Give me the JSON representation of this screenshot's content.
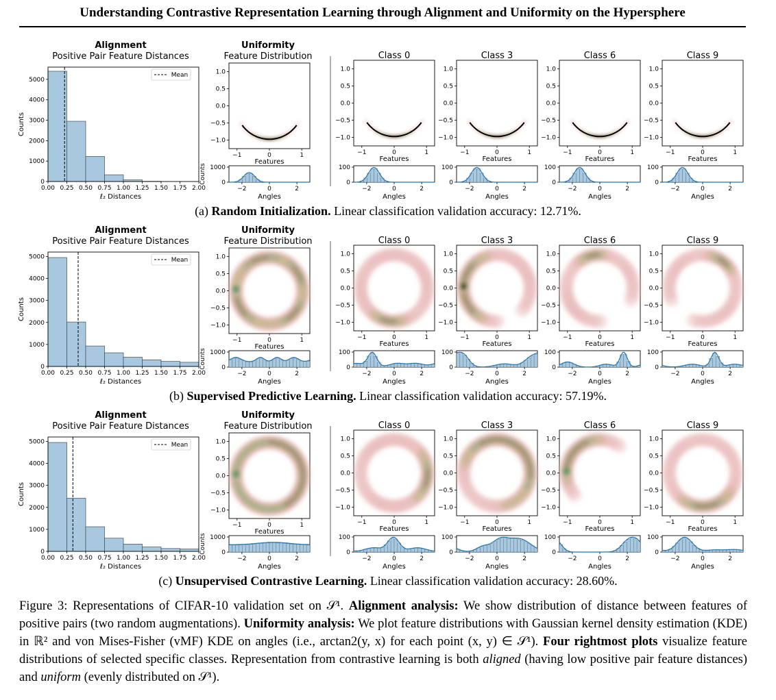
{
  "paper": {
    "header": "Understanding Contrastive Representation Learning through Alignment and Uniformity on the Hypersphere"
  },
  "panel_text": {
    "alignment_title": "Alignment",
    "alignment_subtitle": "Positive Pair Feature Distances",
    "uniformity_title": "Uniformity",
    "uniformity_subtitle": "Feature Distribution",
    "counts_label": "Counts",
    "distances_label": "ℓ₂ Distances",
    "features_label": "Features",
    "angles_label": "Angles",
    "mean_label": "Mean"
  },
  "rows": [
    {
      "caption_prefix": "(a)",
      "caption_bold": "Random Initialization.",
      "caption_rest": "Linear classification validation accuracy: 12.71%."
    },
    {
      "caption_prefix": "(b)",
      "caption_bold": "Supervised Predictive Learning.",
      "caption_rest": "Linear classification validation accuracy: 57.19%."
    },
    {
      "caption_prefix": "(c)",
      "caption_bold": "Unsupervised Contrastive Learning.",
      "caption_rest": "Linear classification validation accuracy: 28.60%."
    }
  ],
  "chart_data": [
    {
      "type": "bar",
      "panel": "(a) Alignment",
      "title": "Alignment",
      "subtitle": "Positive Pair Feature Distances",
      "xlabel": "ℓ₂ Distances",
      "ylabel": "Counts",
      "bin_edges": [
        0,
        0.25,
        0.5,
        0.75,
        1.0,
        1.25,
        1.5,
        1.75,
        2.0
      ],
      "values": [
        5400,
        2950,
        1230,
        330,
        80,
        10,
        0,
        0
      ],
      "mean": 0.22,
      "xlim": [
        0,
        2
      ],
      "ylim": [
        0,
        5600
      ],
      "yticks": [
        0,
        1000,
        2000,
        3000,
        4000,
        5000
      ],
      "xticks": [
        "0.00",
        "0.25",
        "0.50",
        "0.75",
        "1.00",
        "1.25",
        "1.50",
        "1.75",
        "2.00"
      ],
      "legend": "Mean"
    },
    {
      "type": "bar",
      "panel": "(b) Alignment",
      "title": "Alignment",
      "subtitle": "Positive Pair Feature Distances",
      "xlabel": "ℓ₂ Distances",
      "ylabel": "Counts",
      "bin_edges": [
        0,
        0.25,
        0.5,
        0.75,
        1.0,
        1.25,
        1.5,
        1.75,
        2.0
      ],
      "values": [
        4950,
        2020,
        930,
        620,
        420,
        300,
        230,
        190
      ],
      "extra_values": [
        180,
        380
      ],
      "mean": 0.4,
      "xlim": [
        0,
        2
      ],
      "ylim": [
        0,
        5200
      ],
      "yticks": [
        0,
        1000,
        2000,
        3000,
        4000,
        5000
      ],
      "xticks": [
        "0.00",
        "0.25",
        "0.50",
        "0.75",
        "1.00",
        "1.25",
        "1.50",
        "1.75",
        "2.00"
      ],
      "legend": "Mean"
    },
    {
      "type": "bar",
      "panel": "(c) Alignment",
      "title": "Alignment",
      "subtitle": "Positive Pair Feature Distances",
      "xlabel": "ℓ₂ Distances",
      "ylabel": "Counts",
      "bin_edges": [
        0,
        0.25,
        0.5,
        0.75,
        1.0,
        1.25,
        1.5,
        1.75,
        2.0
      ],
      "values": [
        4950,
        2420,
        1120,
        600,
        330,
        200,
        130,
        110
      ],
      "extra_values": [
        120,
        140
      ],
      "mean": 0.33,
      "xlim": [
        0,
        2
      ],
      "ylim": [
        0,
        5200
      ],
      "yticks": [
        0,
        1000,
        2000,
        3000,
        4000,
        5000
      ],
      "xticks": [
        "0.00",
        "0.25",
        "0.50",
        "0.75",
        "1.00",
        "1.25",
        "1.50",
        "1.75",
        "2.00"
      ],
      "legend": "Mean"
    },
    {
      "type": "heatmap",
      "panel": "KDE on S1",
      "columns": [
        "Uniformity",
        "Class 0",
        "Class 3",
        "Class 6",
        "Class 9"
      ],
      "xticks": [
        "−1",
        "0",
        "1"
      ],
      "yticks": [
        "1.0",
        "0.5",
        "0.0",
        "−0.5",
        "−1.0"
      ],
      "xlabel": "Features",
      "angle_xlabel": "Angles",
      "angle_xticks": [
        "−2",
        "0",
        "2"
      ],
      "angle_yticks_uniformity": [
        "0",
        "1000"
      ],
      "angle_yticks_class": [
        "0",
        "100"
      ]
    }
  ],
  "caption": {
    "figure_label": "Figure 3:",
    "text1": "Representations of CIFAR-10 validation set on 𝒮¹.",
    "bold1": "Alignment analysis:",
    "text2": "We show distribution of distance between features of positive pairs (two random augmentations).",
    "bold2": "Uniformity analysis:",
    "text3": "We plot feature distributions with Gaussian kernel density estimation (KDE) in ℝ² and von Mises-Fisher (vMF) KDE on angles (i.e., arctan2(y, x) for each point (x, y) ∈ 𝒮¹).",
    "bold3": "Four rightmost plots",
    "text4": "visualize feature distributions of selected specific classes. Representation from contrastive learning is both",
    "italic1": "aligned",
    "text5": "(having low positive pair feature distances) and",
    "italic2": "uniform",
    "text6": "(evenly distributed on 𝒮¹)."
  },
  "colors": {
    "bar_fill": "#a8c8e0",
    "bar_edge": "#3d4e5e",
    "kde_line": "#1f77b4",
    "ring_outer": "#e8b8b8",
    "ring_mid": "#a6b86a",
    "ring_core": "#3a8a6a",
    "ring_dark": "#000000"
  }
}
